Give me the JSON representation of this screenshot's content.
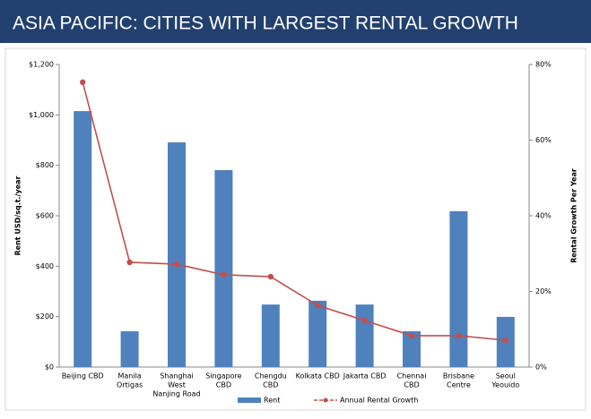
{
  "chart_data": {
    "type": "bar",
    "title": "ASIA PACIFIC: CITIES WITH LARGEST RENTAL GROWTH",
    "y_label": "Rent USD/sq.t./year",
    "y2_label": "Rental Growth Per Year",
    "categories": [
      [
        "Beijing CBD"
      ],
      [
        "Manila",
        "Ortigas"
      ],
      [
        "Shanghai",
        "West",
        "Nanjing Road"
      ],
      [
        "Singapore",
        "CBD"
      ],
      [
        "Chengdu",
        "CBD"
      ],
      [
        "Kolkata CBD"
      ],
      [
        "Jakarta CBD"
      ],
      [
        "Chennai",
        "CBD"
      ],
      [
        "Brisbane",
        "Centre"
      ],
      [
        "Seoul",
        "Yeouido"
      ]
    ],
    "series": [
      {
        "name": "Rent",
        "type": "bar",
        "color": "#4f81bd",
        "values": [
          1015,
          142,
          891,
          781,
          248,
          263,
          248,
          142,
          618,
          199
        ]
      },
      {
        "name": "Annual Rental Growth",
        "type": "line",
        "axis": "y2",
        "color": "#c0504d",
        "values": [
          75.3,
          27.7,
          27.2,
          24.4,
          23.9,
          16.3,
          12.3,
          8.3,
          8.3,
          7.1
        ]
      }
    ],
    "ylim": [
      0,
      1200
    ],
    "yticks": [
      {
        "value": 0,
        "label": "$0"
      },
      {
        "value": 200,
        "label": "$200"
      },
      {
        "value": 400,
        "label": "$400"
      },
      {
        "value": 600,
        "label": "$600"
      },
      {
        "value": 800,
        "label": "$800"
      },
      {
        "value": 1000,
        "label": "$1,000"
      },
      {
        "value": 1200,
        "label": "$1,200"
      }
    ],
    "y2lim": [
      0,
      80
    ],
    "y2ticks": [
      {
        "value": 0,
        "label": "0%"
      },
      {
        "value": 20,
        "label": "20%"
      },
      {
        "value": 40,
        "label": "40%"
      },
      {
        "value": 60,
        "label": "60%"
      },
      {
        "value": 80,
        "label": "80%"
      }
    ],
    "legend": "bottom"
  }
}
